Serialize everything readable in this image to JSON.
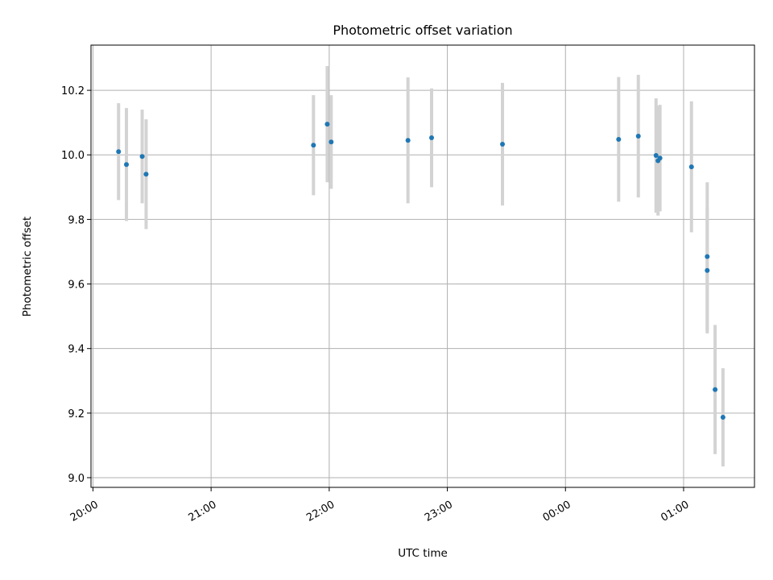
{
  "chart_data": {
    "type": "scatter",
    "title": "Photometric offset variation",
    "xlabel": "UTC time",
    "ylabel": "Photometric offset",
    "x_axis": {
      "type": "time",
      "ticks": [
        "20:00",
        "21:00",
        "22:00",
        "23:00",
        "00:00",
        "01:00"
      ],
      "range": [
        "19:59",
        "01:36"
      ]
    },
    "y_axis": {
      "range": [
        8.97,
        10.34
      ],
      "ticks": [
        "9.0",
        "9.2",
        "9.4",
        "9.6",
        "9.8",
        "10.0",
        "10.2"
      ]
    },
    "grid": true,
    "colors": {
      "points": "#1f77b4",
      "errorbars": "#d3d3d3"
    },
    "points": [
      {
        "t": "20:13",
        "y": 10.01,
        "err": 0.15
      },
      {
        "t": "20:17",
        "y": 9.97,
        "err": 0.175
      },
      {
        "t": "20:25",
        "y": 9.995,
        "err": 0.145
      },
      {
        "t": "20:27",
        "y": 9.94,
        "err": 0.17
      },
      {
        "t": "21:52",
        "y": 10.03,
        "err": 0.155
      },
      {
        "t": "21:59",
        "y": 10.095,
        "err": 0.18
      },
      {
        "t": "22:01",
        "y": 10.04,
        "err": 0.145
      },
      {
        "t": "22:40",
        "y": 10.045,
        "err": 0.195
      },
      {
        "t": "22:52",
        "y": 10.053,
        "err": 0.153
      },
      {
        "t": "23:28",
        "y": 10.033,
        "err": 0.19
      },
      {
        "t": "00:27",
        "y": 10.048,
        "err": 0.193
      },
      {
        "t": "00:37",
        "y": 10.058,
        "err": 0.19
      },
      {
        "t": "00:46",
        "y": 9.998,
        "err": 0.177
      },
      {
        "t": "00:47",
        "y": 9.982,
        "err": 0.17
      },
      {
        "t": "00:48",
        "y": 9.99,
        "err": 0.165
      },
      {
        "t": "01:04",
        "y": 9.963,
        "err": 0.203
      },
      {
        "t": "01:12",
        "y": 9.642,
        "err": 0.195
      },
      {
        "t": "01:12",
        "y": 9.685,
        "err": 0.23
      },
      {
        "t": "01:16",
        "y": 9.273,
        "err": 0.2
      },
      {
        "t": "01:20",
        "y": 9.187,
        "err": 0.152
      }
    ]
  }
}
